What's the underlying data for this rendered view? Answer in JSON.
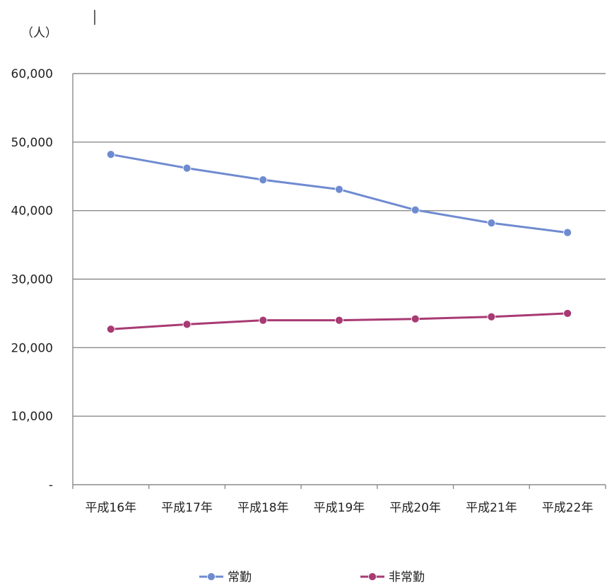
{
  "chart_data": {
    "type": "line",
    "y_unit_label": "（人）",
    "categories": [
      "平成16年",
      "平成17年",
      "平成18年",
      "平成19年",
      "平成20年",
      "平成21年",
      "平成22年"
    ],
    "ylim": [
      0,
      60000
    ],
    "y_ticks": [
      0,
      10000,
      20000,
      30000,
      40000,
      50000,
      60000
    ],
    "y_tick_labels": [
      "-",
      "10,000",
      "20,000",
      "30,000",
      "40,000",
      "50,000",
      "60,000"
    ],
    "grid": true,
    "legend_position": "bottom",
    "series": [
      {
        "name": "常勤",
        "color": "#6f8bd0",
        "values": [
          48200,
          46200,
          44500,
          43100,
          40100,
          38200,
          36800
        ]
      },
      {
        "name": "非常勤",
        "color": "#a83a73",
        "values": [
          22700,
          23400,
          24000,
          24000,
          24200,
          24500,
          25000
        ]
      }
    ]
  }
}
